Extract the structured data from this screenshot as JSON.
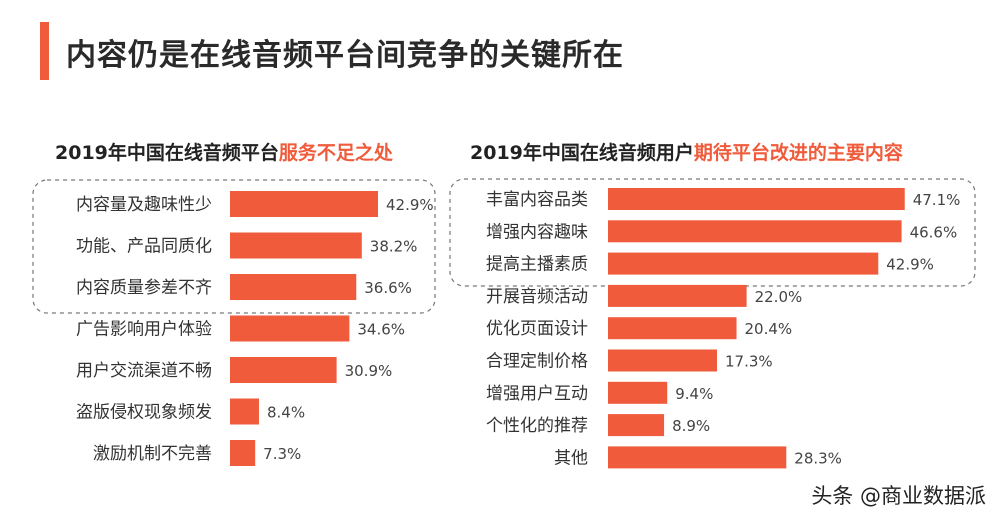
{
  "page": {
    "title": "内容仍是在线音频平台间竞争的关键所在"
  },
  "watermark": "头条 @商业数据派",
  "colors": {
    "accent": "#ef5b3b",
    "box_border": "#777777"
  },
  "chart_data": [
    {
      "type": "bar",
      "orientation": "horizontal",
      "title_prefix": "2019年中国在线音频平台",
      "title_highlight": "服务不足之处",
      "categories": [
        "内容量及趣味性少",
        "功能、产品同质化",
        "内容质量参差不齐",
        "广告影响用户体验",
        "用户交流渠道不畅",
        "盗版侵权现象频发",
        "激励机制不完善"
      ],
      "values": [
        42.9,
        38.2,
        36.6,
        34.6,
        30.9,
        8.4,
        7.3
      ],
      "value_labels": [
        "42.9%",
        "38.2%",
        "36.6%",
        "34.6%",
        "30.9%",
        "8.4%",
        "7.3%"
      ],
      "highlighted_count": 3
    },
    {
      "type": "bar",
      "orientation": "horizontal",
      "title_prefix": "2019年中国在线音频用户",
      "title_highlight": "期待平台改进的主要内容",
      "categories": [
        "丰富内容品类",
        "增强内容趣味",
        "提高主播素质",
        "开展音频活动",
        "优化页面设计",
        "合理定制价格",
        "增强用户互动",
        "个性化的推荐",
        "其他"
      ],
      "values": [
        47.1,
        46.6,
        42.9,
        22.0,
        20.4,
        17.3,
        9.4,
        8.9,
        28.3
      ],
      "value_labels": [
        "47.1%",
        "46.6%",
        "42.9%",
        "22.0%",
        "20.4%",
        "17.3%",
        "9.4%",
        "8.9%",
        "28.3%"
      ],
      "highlighted_count": 3
    }
  ]
}
